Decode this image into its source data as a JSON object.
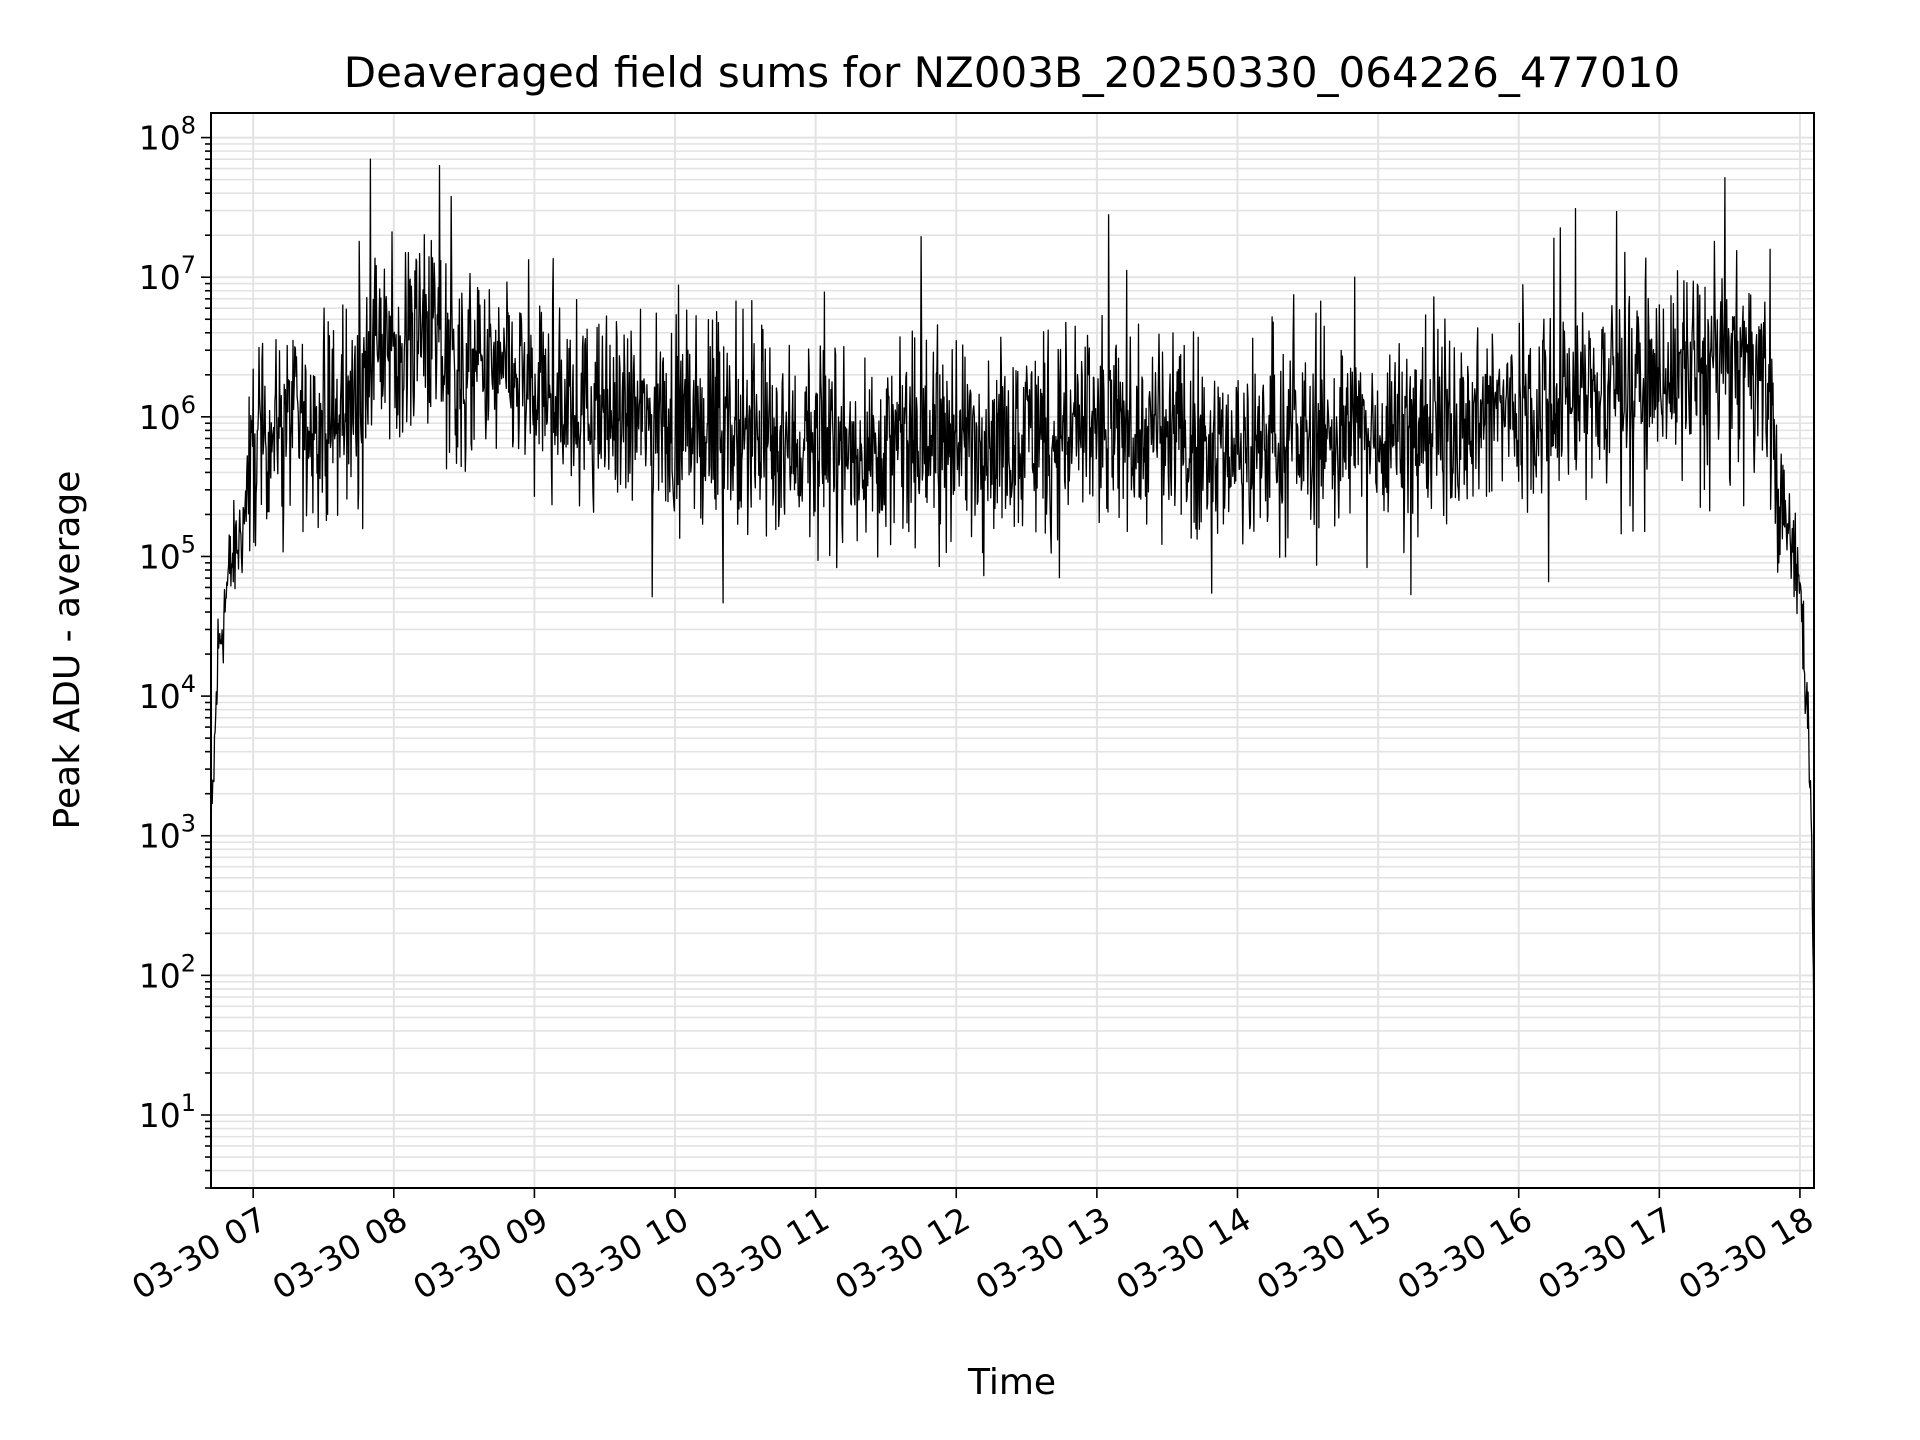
{
  "chart_data": {
    "type": "line",
    "title": "Deaveraged field sums for NZ003B_20250330_064226_477010",
    "xlabel": "Time",
    "ylabel": "Peak ADU - average",
    "yscale": "log",
    "ylim": [
      3,
      150000000
    ],
    "xlim": [
      "03-30 06:42",
      "03-30 18:06"
    ],
    "grid": true,
    "legend": "none",
    "line_color": "#000000",
    "x_ticks": [
      "03-30 07",
      "03-30 08",
      "03-30 09",
      "03-30 10",
      "03-30 11",
      "03-30 12",
      "03-30 13",
      "03-30 14",
      "03-30 15",
      "03-30 16",
      "03-30 17",
      "03-30 18"
    ],
    "y_ticks": [
      {
        "base": "10",
        "exp": "1",
        "value": 10
      },
      {
        "base": "10",
        "exp": "2",
        "value": 100
      },
      {
        "base": "10",
        "exp": "3",
        "value": 1000
      },
      {
        "base": "10",
        "exp": "4",
        "value": 10000
      },
      {
        "base": "10",
        "exp": "5",
        "value": 100000
      },
      {
        "base": "10",
        "exp": "6",
        "value": 1000000
      },
      {
        "base": "10",
        "exp": "7",
        "value": 10000000
      },
      {
        "base": "10",
        "exp": "8",
        "value": 100000000
      }
    ],
    "series": [
      {
        "x": [
          "03-30 06:42",
          "03-30 06:45",
          "03-30 06:50",
          "03-30 06:55",
          "03-30 07:00",
          "03-30 07:05",
          "03-30 07:10",
          "03-30 07:15",
          "03-30 07:20",
          "03-30 07:30",
          "03-30 07:40",
          "03-30 07:45",
          "03-30 07:50",
          "03-30 08:00",
          "03-30 08:10",
          "03-30 08:20",
          "03-30 08:30",
          "03-30 08:45",
          "03-30 09:00",
          "03-30 09:30",
          "03-30 10:00",
          "03-30 10:30",
          "03-30 11:00",
          "03-30 11:30",
          "03-30 12:00",
          "03-30 12:30",
          "03-30 13:00",
          "03-30 13:30",
          "03-30 14:00",
          "03-30 14:30",
          "03-30 15:00",
          "03-30 15:30",
          "03-30 16:00",
          "03-30 16:30",
          "03-30 17:00",
          "03-30 17:30",
          "03-30 17:40",
          "03-30 17:45",
          "03-30 17:50",
          "03-30 17:55",
          "03-30 18:00",
          "03-30 18:03",
          "03-30 18:05",
          "03-30 18:06"
        ],
        "values": [
          800,
          20000,
          80000,
          150000,
          500000,
          800000,
          900000,
          1000000,
          900000,
          800000,
          1000000,
          1500000,
          3000000,
          3500000,
          4000000,
          3000000,
          2000000,
          2000000,
          1500000,
          1000000,
          900000,
          700000,
          600000,
          600000,
          700000,
          800000,
          800000,
          700000,
          600000,
          700000,
          800000,
          900000,
          1200000,
          1500000,
          2000000,
          2500000,
          2500000,
          2000000,
          300000,
          150000,
          60000,
          10000,
          1000,
          50
        ]
      }
    ],
    "spikes": [
      {
        "x": "03-30 07:50",
        "value": 70000000
      },
      {
        "x": "03-30 13:05",
        "value": 28000000
      },
      {
        "x": "03-30 16:15",
        "value": 19000000
      },
      {
        "x": "03-30 08:05",
        "value": 15000000
      },
      {
        "x": "03-30 08:15",
        "value": 14000000
      },
      {
        "x": "03-30 14:50",
        "value": 10000000
      }
    ]
  }
}
